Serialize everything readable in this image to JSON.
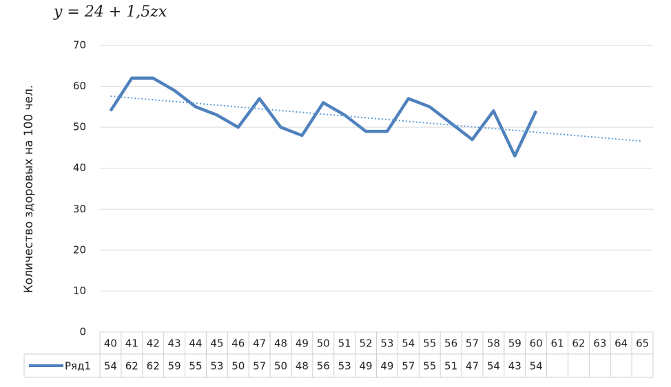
{
  "chart_data": {
    "type": "line",
    "title": "y = 24 + 1,5zx",
    "y_label": "Количество здоровых на 100 чел.",
    "categories": [
      40,
      41,
      42,
      43,
      44,
      45,
      46,
      47,
      48,
      49,
      50,
      51,
      52,
      53,
      54,
      55,
      56,
      57,
      58,
      59,
      60,
      61,
      62,
      63,
      64,
      65
    ],
    "series": [
      {
        "name": "Ряд1",
        "color": "#4f81bd",
        "values": [
          54,
          62,
          62,
          59,
          55,
          53,
          50,
          57,
          50,
          48,
          56,
          53,
          49,
          49,
          57,
          55,
          51,
          47,
          54,
          43,
          54,
          null,
          null,
          null,
          null,
          null
        ]
      }
    ],
    "trendline": {
      "color": "#5b9bd5",
      "values": [
        57.6,
        46.6
      ]
    },
    "ylim": [
      0,
      70
    ],
    "yticks": [
      0,
      10,
      20,
      30,
      40,
      50,
      60,
      70
    ],
    "grid": true
  }
}
